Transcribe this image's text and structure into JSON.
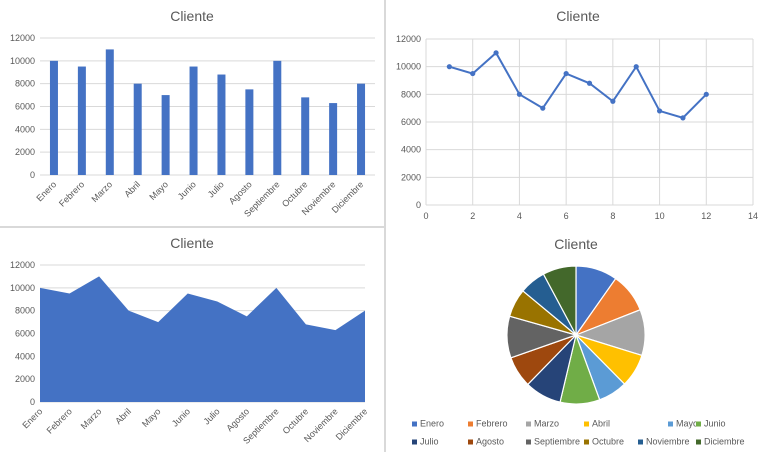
{
  "chart_data": [
    {
      "type": "bar",
      "title": "Cliente",
      "categories": [
        "Enero",
        "Febrero",
        "Marzo",
        "Abril",
        "Mayo",
        "Junio",
        "Julio",
        "Agosto",
        "Septiembre",
        "Octubre",
        "Noviembre",
        "Diciembre"
      ],
      "values": [
        10000,
        9500,
        11000,
        8000,
        7000,
        9500,
        8800,
        7500,
        10000,
        6800,
        6300,
        8000
      ],
      "ylim": [
        0,
        12000
      ],
      "yticks": [
        0,
        2000,
        4000,
        6000,
        8000,
        10000,
        12000
      ],
      "grid": true,
      "color": "#4472C4"
    },
    {
      "type": "scatter",
      "title": "Cliente",
      "x": [
        1,
        2,
        3,
        4,
        5,
        6,
        7,
        8,
        9,
        10,
        11,
        12
      ],
      "y": [
        10000,
        9500,
        11000,
        8000,
        7000,
        9500,
        8800,
        7500,
        10000,
        6800,
        6300,
        8000
      ],
      "xlim": [
        0,
        14
      ],
      "xticks": [
        0,
        2,
        4,
        6,
        8,
        10,
        12,
        14
      ],
      "ylim": [
        0,
        12000
      ],
      "yticks": [
        0,
        2000,
        4000,
        6000,
        8000,
        10000,
        12000
      ],
      "grid": true,
      "color": "#4472C4"
    },
    {
      "type": "area",
      "title": "Cliente",
      "categories": [
        "Enero",
        "Febrero",
        "Marzo",
        "Abril",
        "Mayo",
        "Junio",
        "Julio",
        "Agosto",
        "Septiembre",
        "Octubre",
        "Noviembre",
        "Diciembre"
      ],
      "values": [
        10000,
        9500,
        11000,
        8000,
        7000,
        9500,
        8800,
        7500,
        10000,
        6800,
        6300,
        8000
      ],
      "ylim": [
        0,
        12000
      ],
      "yticks": [
        0,
        2000,
        4000,
        6000,
        8000,
        10000,
        12000
      ],
      "grid": true,
      "color": "#4472C4"
    },
    {
      "type": "pie",
      "title": "Cliente",
      "categories": [
        "Enero",
        "Febrero",
        "Marzo",
        "Abril",
        "Mayo",
        "Junio",
        "Julio",
        "Agosto",
        "Septiembre",
        "Octubre",
        "Noviembre",
        "Diciembre"
      ],
      "values": [
        10000,
        9500,
        11000,
        8000,
        7000,
        9500,
        8800,
        7500,
        10000,
        6800,
        6300,
        8000
      ],
      "colors": [
        "#4472C4",
        "#ED7D31",
        "#A5A5A5",
        "#FFC000",
        "#5B9BD5",
        "#70AD47",
        "#264478",
        "#9E480E",
        "#636363",
        "#997300",
        "#255E91",
        "#43682B"
      ],
      "legend": "bottom"
    }
  ]
}
